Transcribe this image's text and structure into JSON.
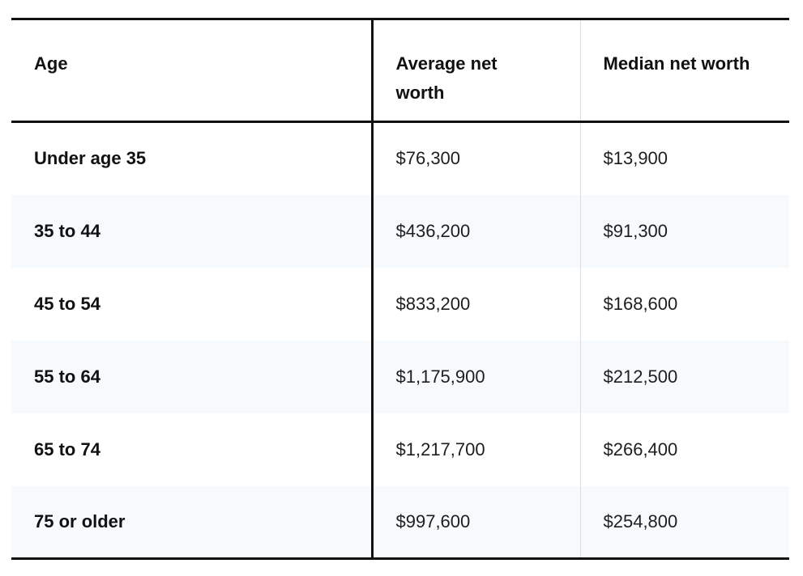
{
  "table": {
    "headers": [
      "Age",
      "Average net worth",
      "Median net worth"
    ],
    "rows": [
      [
        "Under age 35",
        "$76,300",
        "$13,900"
      ],
      [
        "35 to 44",
        "$436,200",
        "$91,300"
      ],
      [
        "45 to 54",
        "$833,200",
        "$168,600"
      ],
      [
        "55 to 64",
        "$1,175,900",
        "$212,500"
      ],
      [
        "65 to 74",
        "$1,217,700",
        "$266,400"
      ],
      [
        "75 or older",
        "$997,600",
        "$254,800"
      ]
    ]
  }
}
